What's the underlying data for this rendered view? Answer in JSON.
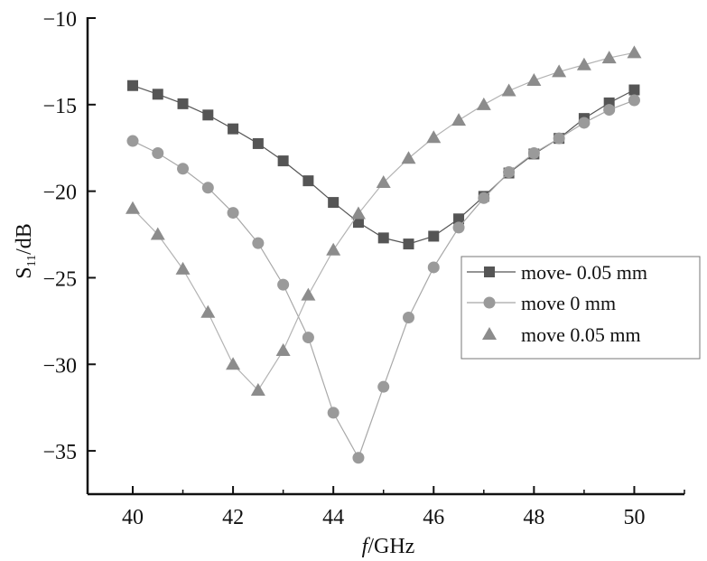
{
  "chart_data": {
    "type": "line",
    "xlabel": {
      "italic": "f",
      "rest": "/GHz"
    },
    "ylabel": {
      "main": "S",
      "sub": "11",
      "rest": "/dB"
    },
    "xlim": [
      39.1,
      51.0
    ],
    "ylim": [
      -37.5,
      -10
    ],
    "xticks": [
      40,
      42,
      44,
      46,
      48,
      50
    ],
    "yticks": [
      -10,
      -15,
      -20,
      -25,
      -30,
      -35
    ],
    "x": [
      40,
      40.5,
      41,
      41.5,
      42,
      42.5,
      43,
      43.5,
      44,
      44.5,
      45,
      45.5,
      46,
      46.5,
      47,
      47.5,
      48,
      48.5,
      49,
      49.5,
      50
    ],
    "legend_position": "right",
    "series": [
      {
        "name": "move- 0.05 mm",
        "marker": "square",
        "color": "#555555",
        "line_color": "#555555",
        "values": [
          -13.9,
          -14.4,
          -14.95,
          -15.6,
          -16.4,
          -17.25,
          -18.25,
          -19.4,
          -20.65,
          -21.8,
          -22.7,
          -23.05,
          -22.6,
          -21.6,
          -20.3,
          -18.95,
          -17.85,
          -16.95,
          -15.8,
          -14.9,
          -14.15
        ]
      },
      {
        "name": "move 0 mm",
        "marker": "circle",
        "color": "#9a9a9a",
        "line_color": "#a8a8a8",
        "values": [
          -17.1,
          -17.8,
          -18.7,
          -19.8,
          -21.25,
          -23.0,
          -25.4,
          -28.45,
          -32.8,
          -35.4,
          -31.3,
          -27.3,
          -24.4,
          -22.1,
          -20.4,
          -18.9,
          -17.8,
          -16.95,
          -16.05,
          -15.3,
          -14.75
        ]
      },
      {
        "name": "move 0.05 mm",
        "marker": "triangle",
        "color": "#8c8c8c",
        "line_color": "#b3b3b3",
        "values": [
          -21.0,
          -22.5,
          -24.5,
          -27.0,
          -30.0,
          -31.5,
          -29.2,
          -26.0,
          -23.4,
          -21.3,
          -19.5,
          -18.1,
          -16.9,
          -15.9,
          -15.0,
          -14.2,
          -13.6,
          -13.1,
          -12.7,
          -12.3,
          -12.0
        ]
      }
    ]
  }
}
